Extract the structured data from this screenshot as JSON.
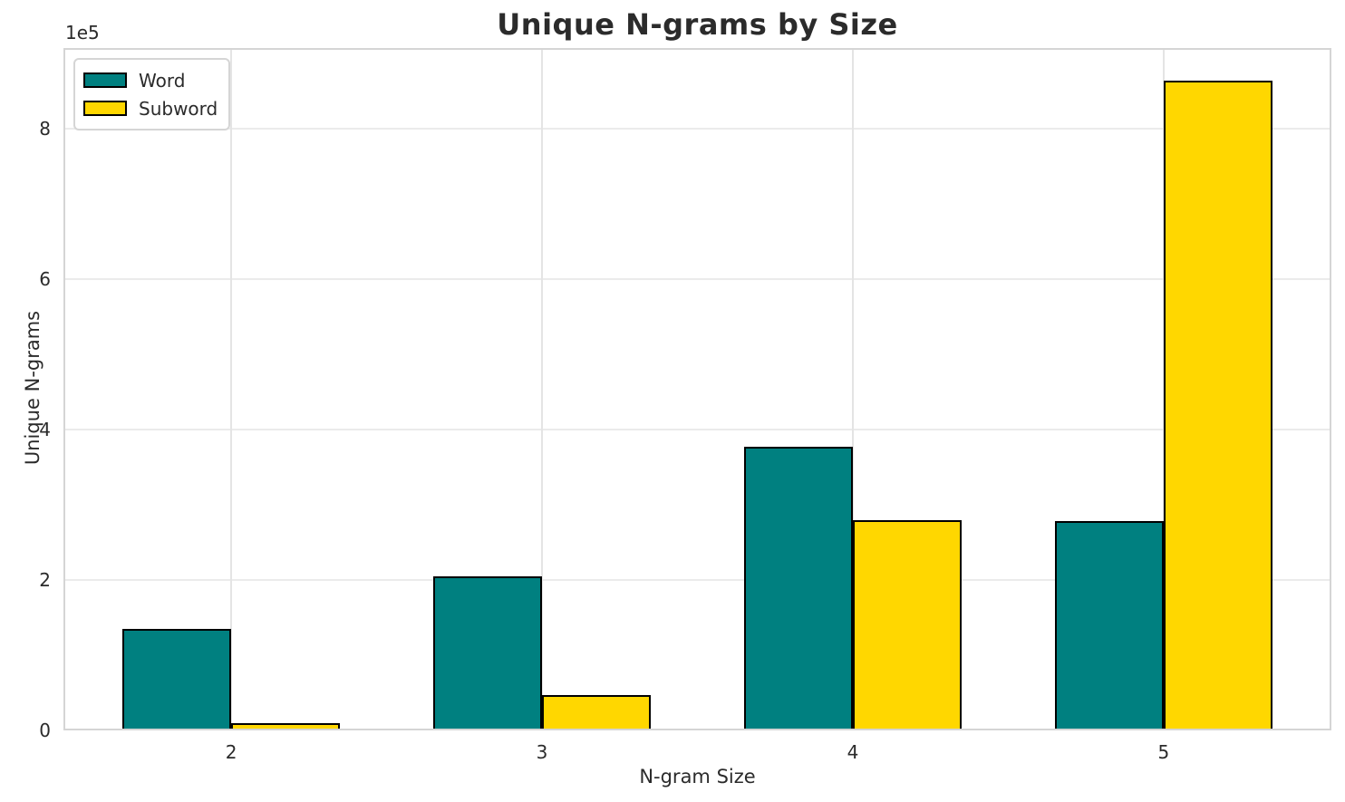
{
  "chart_data": {
    "type": "bar",
    "title": "Unique N-grams by Size",
    "xlabel": "N-gram Size",
    "ylabel": "Unique N-grams",
    "offset_text": "1e5",
    "categories": [
      "2",
      "3",
      "4",
      "5"
    ],
    "series": [
      {
        "name": "Word",
        "color": "#008080",
        "values": [
          135000,
          205000,
          377000,
          278000
        ]
      },
      {
        "name": "Subword",
        "color": "#FFD700",
        "values": [
          10000,
          47000,
          280000,
          864000
        ]
      }
    ],
    "ylim": [
      0,
      907000
    ],
    "yticks": [
      0,
      200000,
      400000,
      600000,
      800000
    ],
    "ytick_labels": [
      "0",
      "2",
      "4",
      "6",
      "8"
    ],
    "grid": true,
    "legend_position": "upper left",
    "bar_edge_color": "#000000",
    "bar_group_width_fraction": 0.35,
    "x_span_units": 4.08,
    "x_pad_units": 0.54
  }
}
